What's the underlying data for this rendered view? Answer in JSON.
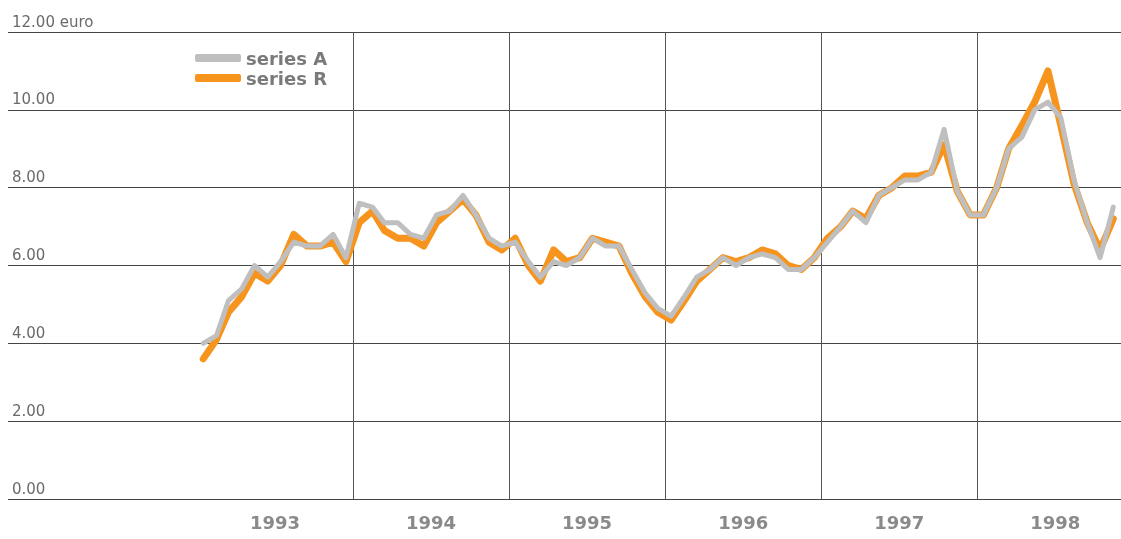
{
  "chart_data": {
    "type": "line",
    "x": [
      "1993-01-15",
      "1993-02-15",
      "1993-03-15",
      "1993-04-15",
      "1993-05-15",
      "1993-06-15",
      "1993-07-15",
      "1993-08-15",
      "1993-09-15",
      "1993-10-15",
      "1993-11-15",
      "1993-12-15",
      "1994-01-15",
      "1994-02-15",
      "1994-03-15",
      "1994-04-15",
      "1994-05-15",
      "1994-06-15",
      "1994-07-15",
      "1994-08-15",
      "1994-09-15",
      "1994-10-15",
      "1994-11-15",
      "1994-12-15",
      "1995-01-15",
      "1995-02-15",
      "1995-03-15",
      "1995-04-15",
      "1995-05-15",
      "1995-06-15",
      "1995-07-15",
      "1995-08-15",
      "1995-09-15",
      "1995-10-15",
      "1995-11-15",
      "1995-12-15",
      "1996-01-15",
      "1996-02-15",
      "1996-03-15",
      "1996-04-15",
      "1996-05-15",
      "1996-06-15",
      "1996-07-15",
      "1996-08-15",
      "1996-09-15",
      "1996-10-15",
      "1996-11-15",
      "1996-12-15",
      "1997-01-15",
      "1997-02-15",
      "1997-03-15",
      "1997-04-15",
      "1997-05-15",
      "1997-06-15",
      "1997-07-15",
      "1997-08-15",
      "1997-09-15",
      "1997-10-15",
      "1997-11-15",
      "1997-12-15",
      "1998-01-15",
      "1998-02-15",
      "1998-03-15",
      "1998-04-15",
      "1998-05-15",
      "1998-06-15",
      "1998-07-15",
      "1998-08-15",
      "1998-09-15",
      "1998-10-15",
      "1998-11-15"
    ],
    "series": [
      {
        "name": "series A",
        "color": "#c0bfbf",
        "values": [
          4.0,
          4.2,
          5.1,
          5.4,
          6.0,
          5.7,
          6.1,
          6.6,
          6.5,
          6.5,
          6.8,
          6.2,
          7.6,
          7.5,
          7.1,
          7.1,
          6.8,
          6.7,
          7.3,
          7.4,
          7.8,
          7.3,
          6.7,
          6.5,
          6.6,
          6.1,
          5.7,
          6.1,
          6.0,
          6.2,
          6.7,
          6.5,
          6.5,
          5.9,
          5.3,
          4.9,
          4.7,
          5.2,
          5.7,
          5.9,
          6.2,
          6.0,
          6.2,
          6.3,
          6.2,
          5.9,
          5.9,
          6.2,
          6.6,
          7.0,
          7.4,
          7.1,
          7.8,
          8.0,
          8.2,
          8.2,
          8.4,
          9.5,
          7.9,
          7.3,
          7.3,
          8.0,
          9.0,
          9.3,
          10.0,
          10.2,
          9.8,
          8.2,
          7.1,
          6.2,
          7.5
        ]
      },
      {
        "name": "series R",
        "color": "#f7941d",
        "values": [
          3.6,
          4.1,
          4.8,
          5.2,
          5.8,
          5.6,
          6.0,
          6.8,
          6.5,
          6.5,
          6.6,
          6.1,
          7.1,
          7.4,
          6.9,
          6.7,
          6.7,
          6.5,
          7.1,
          7.4,
          7.7,
          7.3,
          6.6,
          6.4,
          6.7,
          6.0,
          5.6,
          6.4,
          6.1,
          6.2,
          6.7,
          6.6,
          6.5,
          5.8,
          5.2,
          4.8,
          4.6,
          5.1,
          5.6,
          5.9,
          6.2,
          6.1,
          6.2,
          6.4,
          6.3,
          6.0,
          5.9,
          6.2,
          6.7,
          7.0,
          7.4,
          7.2,
          7.8,
          8.0,
          8.3,
          8.3,
          8.4,
          9.1,
          7.9,
          7.3,
          7.3,
          8.0,
          9.0,
          9.6,
          10.2,
          11.0,
          9.6,
          8.1,
          7.1,
          6.4,
          7.2
        ]
      }
    ],
    "xlim": [
      "1991-10-16",
      "1998-12-03"
    ],
    "xticks": [
      {
        "value": "1993-07-02",
        "label": "1993"
      },
      {
        "value": "1994-07-02",
        "label": "1994"
      },
      {
        "value": "1995-07-02",
        "label": "1995"
      },
      {
        "value": "1996-07-02",
        "label": "1996"
      },
      {
        "value": "1997-07-02",
        "label": "1997"
      },
      {
        "value": "1998-07-02",
        "label": "1998"
      },
      {
        "value": "1994-01-01",
        "label": null
      },
      {
        "value": "1995-01-01",
        "label": null
      },
      {
        "value": "1996-01-01",
        "label": null
      },
      {
        "value": "1997-01-01",
        "label": null
      },
      {
        "value": "1998-01-01",
        "label": null
      }
    ],
    "ylim": [
      0,
      12
    ],
    "yticks": [
      {
        "value": 0,
        "label": "0.00"
      },
      {
        "value": 2,
        "label": "2.00"
      },
      {
        "value": 4,
        "label": "4.00"
      },
      {
        "value": 6,
        "label": "6.00"
      },
      {
        "value": 8,
        "label": "8.00"
      },
      {
        "value": 10,
        "label": "10.00"
      },
      {
        "value": 12,
        "label": "12.00 euro"
      }
    ],
    "grid": true,
    "legend": "top left",
    "marker": "none",
    "line_style": "solid"
  }
}
